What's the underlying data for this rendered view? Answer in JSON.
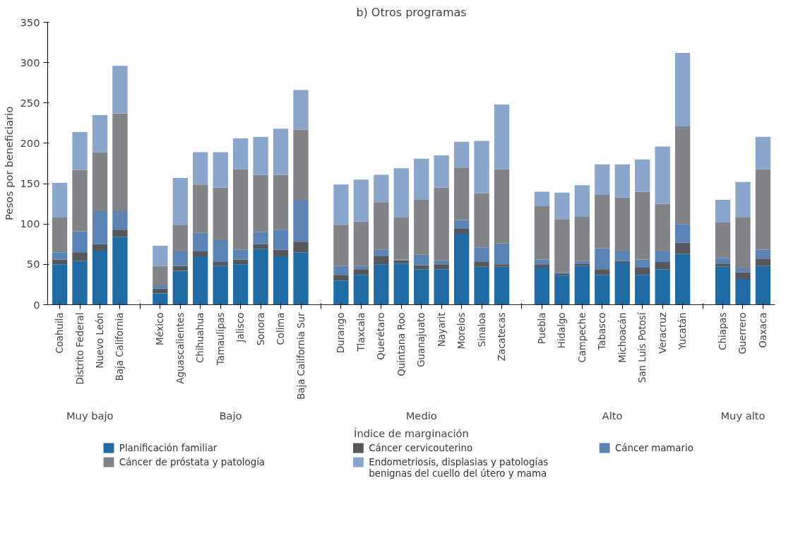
{
  "chart_data": {
    "type": "bar",
    "stacked": true,
    "title": "b) Otros programas",
    "xlabel": "Índice de marginación",
    "ylabel": "Pesos por beneficiario",
    "categories": [
      "Coahuila",
      "Distrito Federal",
      "Nuevo León",
      "Baja California",
      null,
      "México",
      "Aguascalientes",
      "Chihuahua",
      "Tamaulipas",
      "Jalisco",
      "Sonora",
      "Colima",
      "Baja California Sur",
      null,
      "Durango",
      "Tlaxcala",
      "Querétaro",
      "Quintana Roo",
      "Guanajuato",
      "Nayarit",
      "Morelos",
      "Sinaloa",
      "Zacatecas",
      null,
      "Puebla",
      "Hidalgo",
      "Campeche",
      "Tabasco",
      "Michoacán",
      "San Luis Potosí",
      "Veracruz",
      "Yucatán",
      null,
      "Chiapas",
      "Guerrero",
      "Oaxaca"
    ],
    "annotations": [
      "Muy bajo",
      "Bajo",
      "Medio",
      "Alto",
      "Muy alto"
    ],
    "series": [
      {
        "name": "Planificación familiar",
        "color": "#1f6ba5",
        "values": [
          50,
          54,
          67,
          84,
          null,
          14,
          42,
          60,
          48,
          50,
          69,
          60,
          65,
          null,
          30,
          37,
          50,
          51,
          44,
          44,
          88,
          47,
          47,
          null,
          46,
          36,
          48,
          37,
          52,
          37,
          44,
          63,
          null,
          47,
          32,
          48
        ]
      },
      {
        "name": "Cáncer cervicouterino",
        "color": "#55575a",
        "values": [
          6,
          11,
          8,
          9,
          null,
          6,
          6,
          6,
          5,
          6,
          6,
          8,
          13,
          null,
          7,
          7,
          10,
          4,
          5,
          6,
          6,
          6,
          3,
          null,
          4,
          2,
          3,
          7,
          2,
          9,
          9,
          14,
          null,
          4,
          8,
          9
        ]
      },
      {
        "name": "Cáncer mamario",
        "color": "#5b84b6",
        "values": [
          9,
          26,
          41,
          23,
          null,
          4,
          18,
          23,
          27,
          12,
          15,
          25,
          52,
          null,
          11,
          4,
          8,
          1,
          13,
          5,
          11,
          18,
          26,
          null,
          6,
          2,
          3,
          26,
          12,
          10,
          13,
          23,
          null,
          7,
          5,
          11
        ]
      },
      {
        "name": "Cáncer de próstata y patología",
        "color": "#828387",
        "values": [
          43,
          76,
          73,
          121,
          null,
          24,
          33,
          60,
          65,
          100,
          71,
          68,
          87,
          null,
          51,
          55,
          59,
          52,
          68,
          90,
          65,
          67,
          92,
          null,
          66,
          66,
          55,
          66,
          67,
          84,
          59,
          121,
          null,
          44,
          63,
          100
        ]
      },
      {
        "name": "Endometriosis, displasias y patologías benignas del cuello del útero y mama",
        "color": "#8ba6cd",
        "values": [
          43,
          47,
          46,
          59,
          null,
          25,
          58,
          40,
          44,
          38,
          47,
          57,
          49,
          null,
          50,
          52,
          34,
          61,
          51,
          40,
          32,
          65,
          80,
          null,
          18,
          33,
          39,
          38,
          41,
          40,
          71,
          91,
          null,
          28,
          44,
          40
        ]
      }
    ],
    "ylim": [
      0,
      350
    ],
    "yticks": [
      0,
      50,
      100,
      150,
      200,
      250,
      300,
      350
    ],
    "grid": false,
    "legend": "bottom"
  }
}
